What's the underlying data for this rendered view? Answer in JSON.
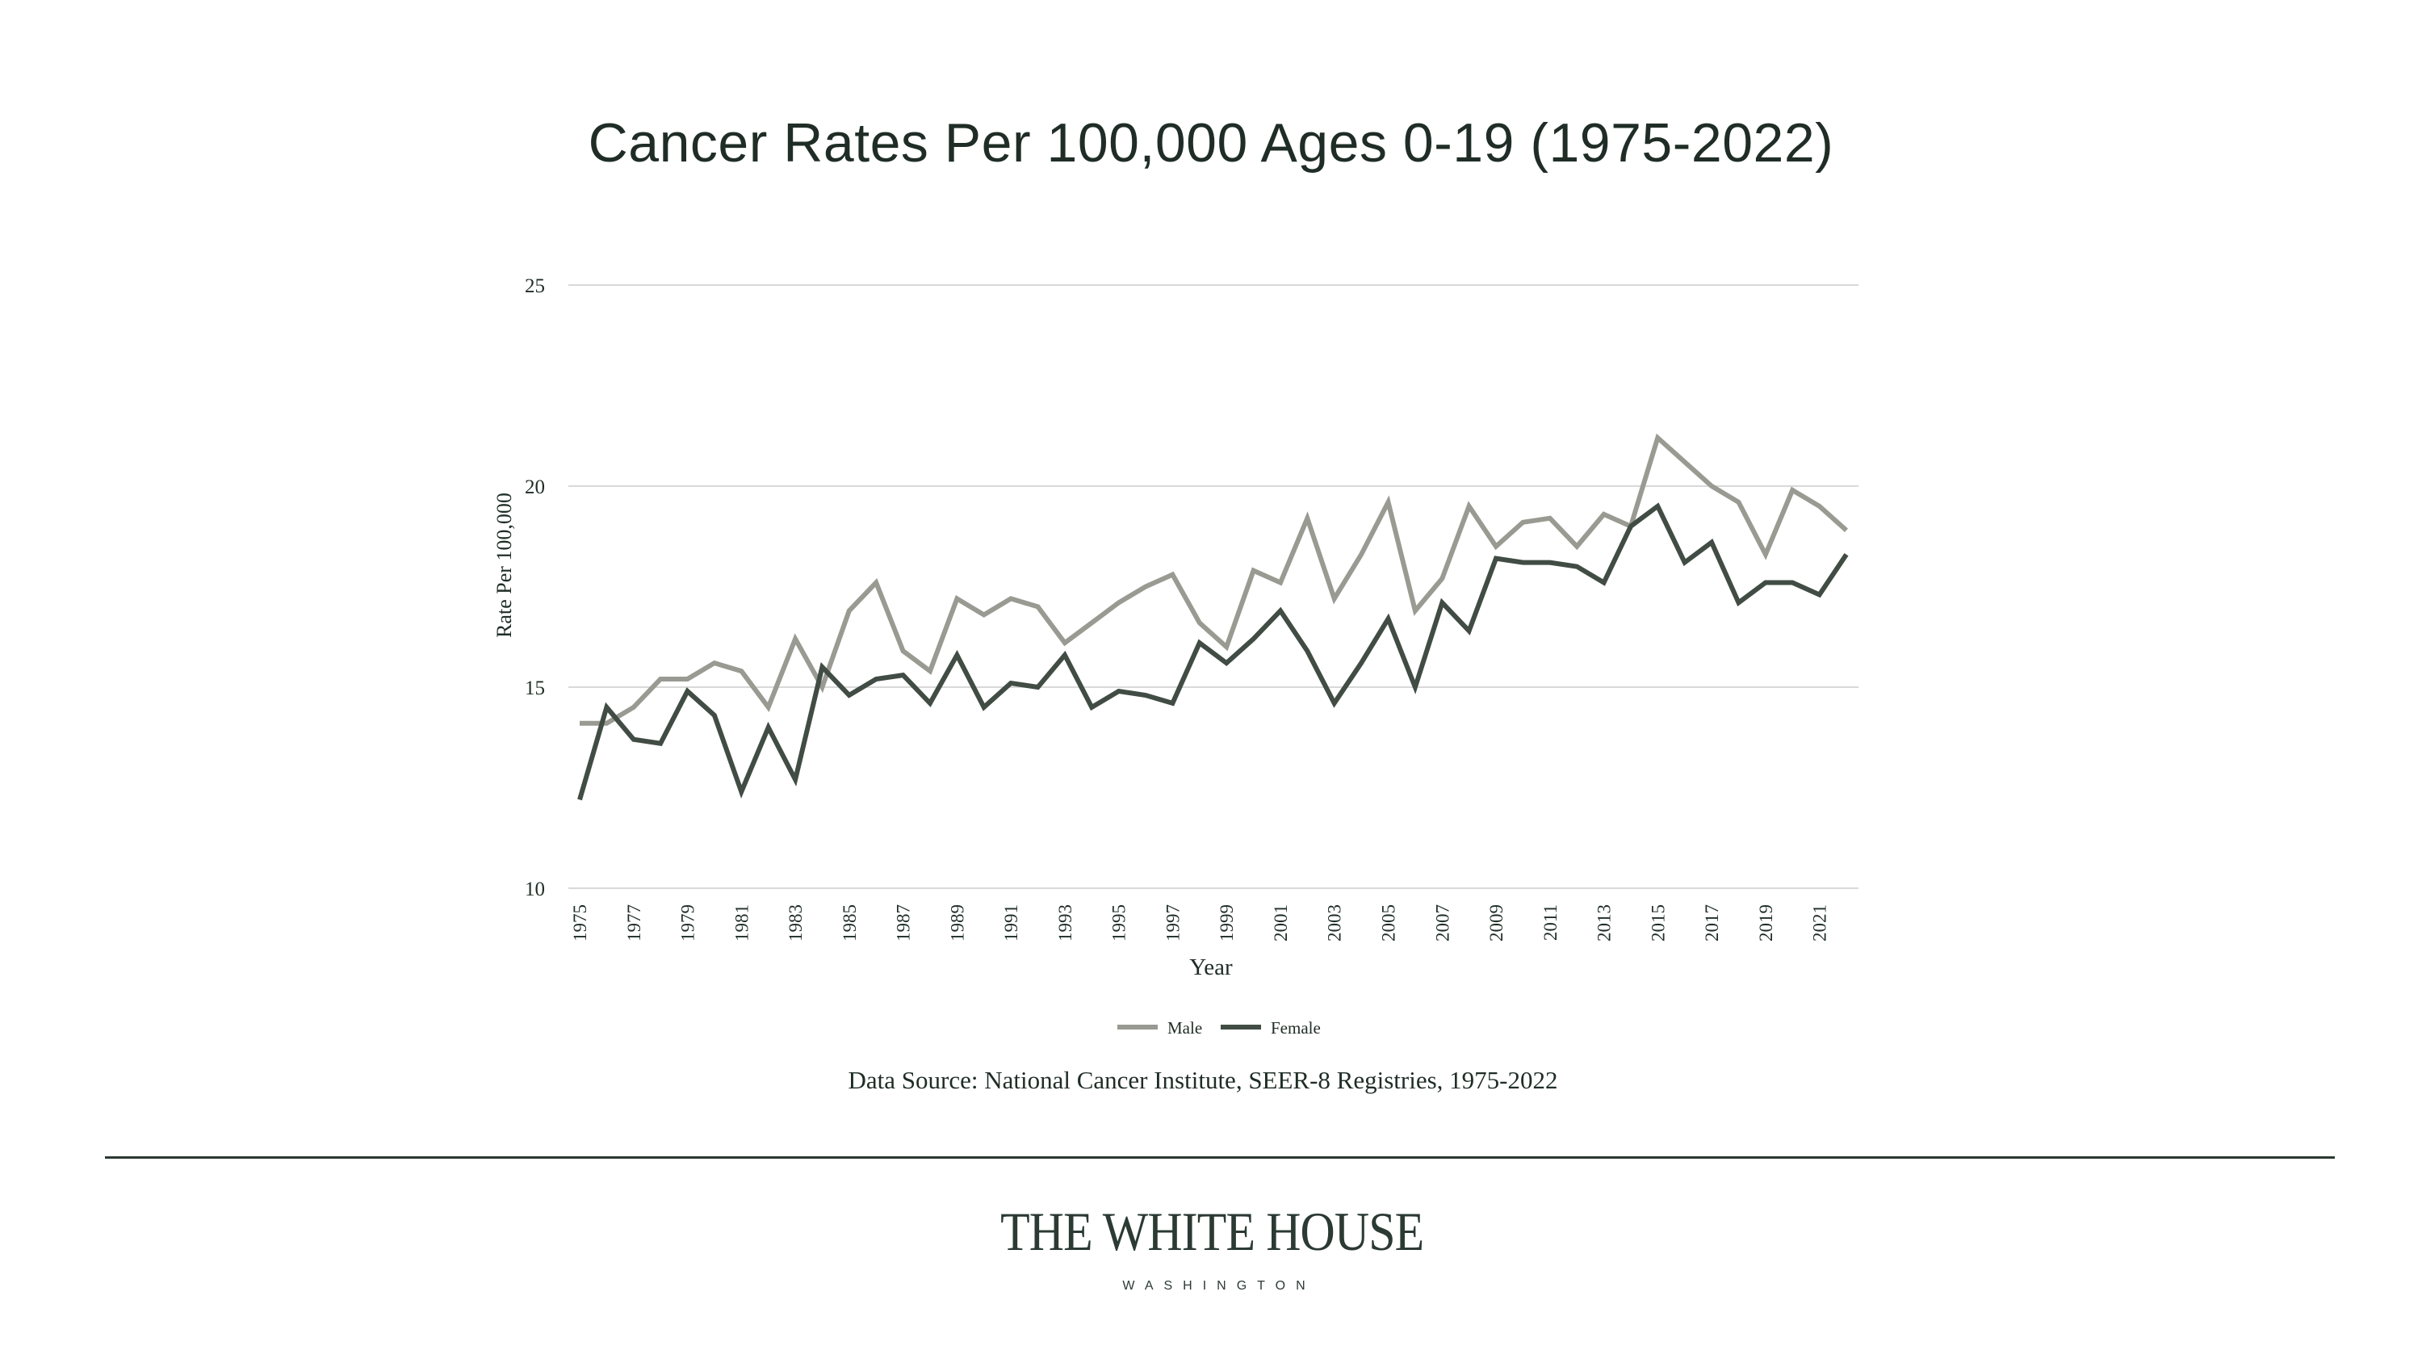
{
  "slide": {
    "source": "Data  Source: National Cancer Institute, SEER-8 Registries, 1975-2022",
    "logo_title": "THE WHITE HOUSE",
    "logo_subtitle": "WASHINGTON"
  },
  "chart_data": {
    "type": "line",
    "title": "Cancer Rates Per 100,000 Ages 0-19 (1975-2022)",
    "xlabel": "Year",
    "ylabel": "Rate Per 100,000",
    "ylim": [
      10,
      25
    ],
    "yticks": [
      10,
      15,
      20,
      25
    ],
    "grid": true,
    "legend_position": "bottom",
    "x": [
      1975,
      1976,
      1977,
      1978,
      1979,
      1980,
      1981,
      1982,
      1983,
      1984,
      1985,
      1986,
      1987,
      1988,
      1989,
      1990,
      1991,
      1992,
      1993,
      1994,
      1995,
      1996,
      1997,
      1998,
      1999,
      2000,
      2001,
      2002,
      2003,
      2004,
      2005,
      2006,
      2007,
      2008,
      2009,
      2010,
      2011,
      2012,
      2013,
      2014,
      2015,
      2016,
      2017,
      2018,
      2019,
      2020,
      2021,
      2022
    ],
    "xtick_labels": [
      "1975",
      "1977",
      "1979",
      "1981",
      "1983",
      "1985",
      "1987",
      "1989",
      "1991",
      "1993",
      "1995",
      "1997",
      "1999",
      "2001",
      "2003",
      "2005",
      "2007",
      "2009",
      "2011",
      "2013",
      "2015",
      "2017",
      "2019",
      "2021"
    ],
    "series": [
      {
        "name": "Male",
        "color": "#999a92",
        "values": [
          14.1,
          14.1,
          14.5,
          15.2,
          15.2,
          15.6,
          15.4,
          14.5,
          16.2,
          15.0,
          16.9,
          17.6,
          15.9,
          15.4,
          17.2,
          16.8,
          17.2,
          17.0,
          16.1,
          16.6,
          17.1,
          17.5,
          17.8,
          16.6,
          16.0,
          17.9,
          17.6,
          19.2,
          17.2,
          18.3,
          19.6,
          16.9,
          17.7,
          19.5,
          18.5,
          19.1,
          19.2,
          18.5,
          19.3,
          19.0,
          21.2,
          20.6,
          20.0,
          19.6,
          18.3,
          19.9,
          19.5,
          18.9
        ]
      },
      {
        "name": "Female",
        "color": "#414c44",
        "values": [
          12.2,
          14.5,
          13.7,
          13.6,
          14.9,
          14.3,
          12.4,
          14.0,
          12.7,
          15.5,
          14.8,
          15.2,
          15.3,
          14.6,
          15.8,
          14.5,
          15.1,
          15.0,
          15.8,
          14.5,
          14.9,
          14.8,
          14.6,
          16.1,
          15.6,
          16.2,
          16.9,
          15.9,
          14.6,
          15.6,
          16.7,
          15.0,
          17.1,
          16.4,
          18.2,
          18.1,
          18.1,
          18.0,
          17.6,
          19.0,
          19.5,
          18.1,
          18.6,
          17.1,
          17.6,
          17.6,
          17.3,
          18.3
        ]
      }
    ]
  }
}
